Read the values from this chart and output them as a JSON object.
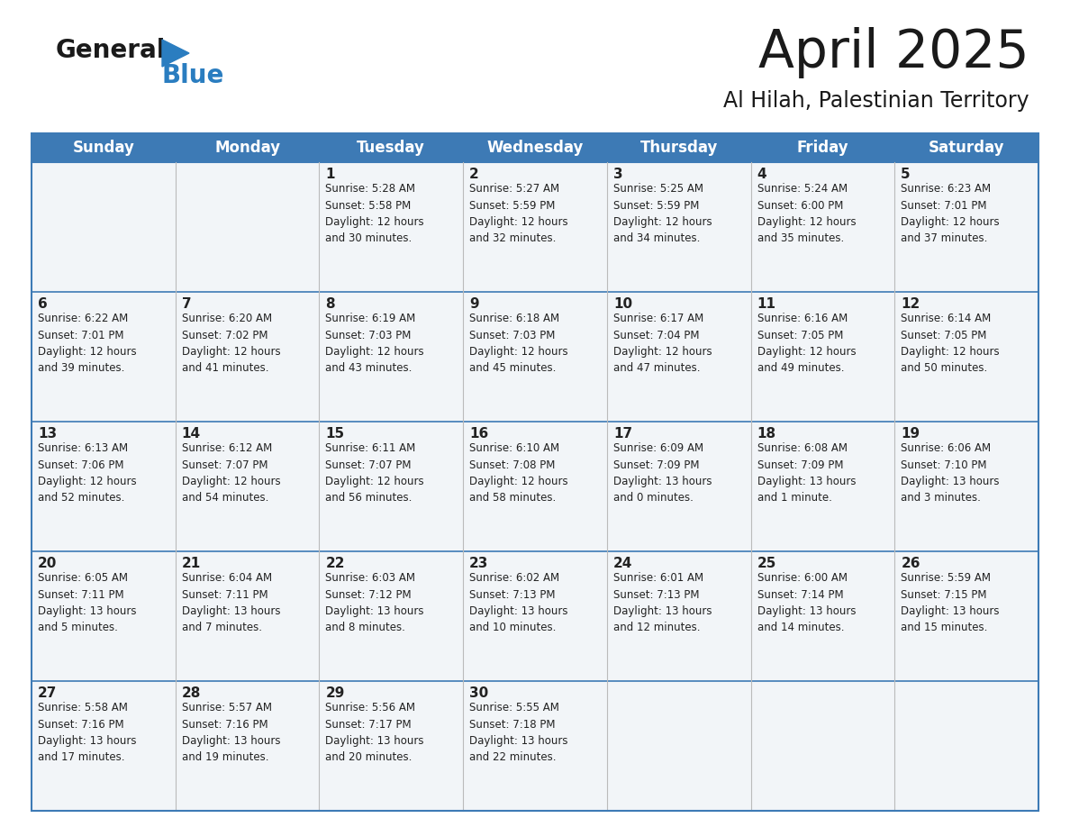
{
  "title": "April 2025",
  "subtitle": "Al Hilah, Palestinian Territory",
  "header_bg_color": "#3d7ab5",
  "header_text_color": "#ffffff",
  "row_bg_color": "#f2f5f8",
  "border_color": "#3d7ab5",
  "cell_border_color": "#cccccc",
  "text_color": "#222222",
  "logo_black": "#1a1a1a",
  "logo_blue": "#2a7dc0",
  "days_of_week": [
    "Sunday",
    "Monday",
    "Tuesday",
    "Wednesday",
    "Thursday",
    "Friday",
    "Saturday"
  ],
  "weeks": [
    [
      {
        "day": "",
        "info": ""
      },
      {
        "day": "",
        "info": ""
      },
      {
        "day": "1",
        "info": "Sunrise: 5:28 AM\nSunset: 5:58 PM\nDaylight: 12 hours\nand 30 minutes."
      },
      {
        "day": "2",
        "info": "Sunrise: 5:27 AM\nSunset: 5:59 PM\nDaylight: 12 hours\nand 32 minutes."
      },
      {
        "day": "3",
        "info": "Sunrise: 5:25 AM\nSunset: 5:59 PM\nDaylight: 12 hours\nand 34 minutes."
      },
      {
        "day": "4",
        "info": "Sunrise: 5:24 AM\nSunset: 6:00 PM\nDaylight: 12 hours\nand 35 minutes."
      },
      {
        "day": "5",
        "info": "Sunrise: 6:23 AM\nSunset: 7:01 PM\nDaylight: 12 hours\nand 37 minutes."
      }
    ],
    [
      {
        "day": "6",
        "info": "Sunrise: 6:22 AM\nSunset: 7:01 PM\nDaylight: 12 hours\nand 39 minutes."
      },
      {
        "day": "7",
        "info": "Sunrise: 6:20 AM\nSunset: 7:02 PM\nDaylight: 12 hours\nand 41 minutes."
      },
      {
        "day": "8",
        "info": "Sunrise: 6:19 AM\nSunset: 7:03 PM\nDaylight: 12 hours\nand 43 minutes."
      },
      {
        "day": "9",
        "info": "Sunrise: 6:18 AM\nSunset: 7:03 PM\nDaylight: 12 hours\nand 45 minutes."
      },
      {
        "day": "10",
        "info": "Sunrise: 6:17 AM\nSunset: 7:04 PM\nDaylight: 12 hours\nand 47 minutes."
      },
      {
        "day": "11",
        "info": "Sunrise: 6:16 AM\nSunset: 7:05 PM\nDaylight: 12 hours\nand 49 minutes."
      },
      {
        "day": "12",
        "info": "Sunrise: 6:14 AM\nSunset: 7:05 PM\nDaylight: 12 hours\nand 50 minutes."
      }
    ],
    [
      {
        "day": "13",
        "info": "Sunrise: 6:13 AM\nSunset: 7:06 PM\nDaylight: 12 hours\nand 52 minutes."
      },
      {
        "day": "14",
        "info": "Sunrise: 6:12 AM\nSunset: 7:07 PM\nDaylight: 12 hours\nand 54 minutes."
      },
      {
        "day": "15",
        "info": "Sunrise: 6:11 AM\nSunset: 7:07 PM\nDaylight: 12 hours\nand 56 minutes."
      },
      {
        "day": "16",
        "info": "Sunrise: 6:10 AM\nSunset: 7:08 PM\nDaylight: 12 hours\nand 58 minutes."
      },
      {
        "day": "17",
        "info": "Sunrise: 6:09 AM\nSunset: 7:09 PM\nDaylight: 13 hours\nand 0 minutes."
      },
      {
        "day": "18",
        "info": "Sunrise: 6:08 AM\nSunset: 7:09 PM\nDaylight: 13 hours\nand 1 minute."
      },
      {
        "day": "19",
        "info": "Sunrise: 6:06 AM\nSunset: 7:10 PM\nDaylight: 13 hours\nand 3 minutes."
      }
    ],
    [
      {
        "day": "20",
        "info": "Sunrise: 6:05 AM\nSunset: 7:11 PM\nDaylight: 13 hours\nand 5 minutes."
      },
      {
        "day": "21",
        "info": "Sunrise: 6:04 AM\nSunset: 7:11 PM\nDaylight: 13 hours\nand 7 minutes."
      },
      {
        "day": "22",
        "info": "Sunrise: 6:03 AM\nSunset: 7:12 PM\nDaylight: 13 hours\nand 8 minutes."
      },
      {
        "day": "23",
        "info": "Sunrise: 6:02 AM\nSunset: 7:13 PM\nDaylight: 13 hours\nand 10 minutes."
      },
      {
        "day": "24",
        "info": "Sunrise: 6:01 AM\nSunset: 7:13 PM\nDaylight: 13 hours\nand 12 minutes."
      },
      {
        "day": "25",
        "info": "Sunrise: 6:00 AM\nSunset: 7:14 PM\nDaylight: 13 hours\nand 14 minutes."
      },
      {
        "day": "26",
        "info": "Sunrise: 5:59 AM\nSunset: 7:15 PM\nDaylight: 13 hours\nand 15 minutes."
      }
    ],
    [
      {
        "day": "27",
        "info": "Sunrise: 5:58 AM\nSunset: 7:16 PM\nDaylight: 13 hours\nand 17 minutes."
      },
      {
        "day": "28",
        "info": "Sunrise: 5:57 AM\nSunset: 7:16 PM\nDaylight: 13 hours\nand 19 minutes."
      },
      {
        "day": "29",
        "info": "Sunrise: 5:56 AM\nSunset: 7:17 PM\nDaylight: 13 hours\nand 20 minutes."
      },
      {
        "day": "30",
        "info": "Sunrise: 5:55 AM\nSunset: 7:18 PM\nDaylight: 13 hours\nand 22 minutes."
      },
      {
        "day": "",
        "info": ""
      },
      {
        "day": "",
        "info": ""
      },
      {
        "day": "",
        "info": ""
      }
    ]
  ]
}
